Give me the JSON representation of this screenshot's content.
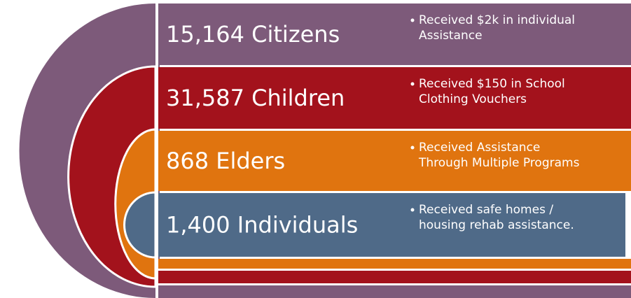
{
  "rows": [
    {
      "label": "15,164 Citizens",
      "lines": [
        "Received $2k in individual",
        "Assistance"
      ]
    },
    {
      "label": "31,587 Children",
      "lines": [
        "Received $150 in School",
        "Clothing Vouchers"
      ]
    },
    {
      "label": "868 Elders",
      "lines": [
        "Received Assistance",
        "Through Multiple Programs"
      ]
    },
    {
      "label": "1,400 Individuals",
      "lines": [
        "Received safe homes /",
        "housing rehab assistance."
      ]
    }
  ]
}
